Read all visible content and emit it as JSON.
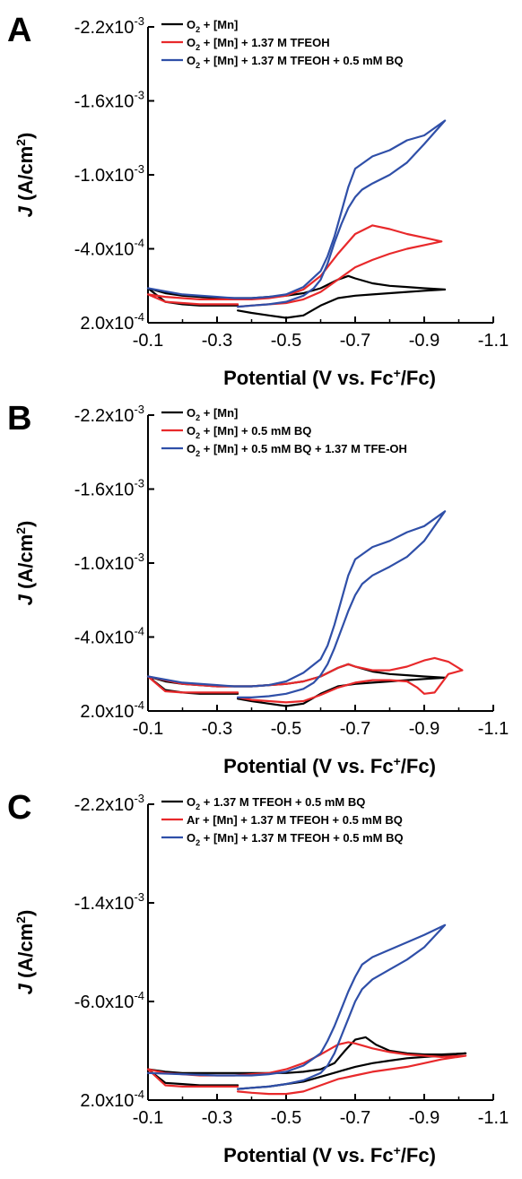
{
  "chart_data": [
    {
      "type": "line",
      "panel": "A",
      "xlabel": "Potential (V vs. Fc⁺/Fc)",
      "ylabel": "J (A/cm²)",
      "xlim": [
        -0.1,
        -1.1
      ],
      "ylim": [
        0.0002,
        -0.0022
      ],
      "x_ticks": [
        "-0.1",
        "-0.3",
        "-0.5",
        "-0.7",
        "-0.9",
        "-1.1"
      ],
      "y_ticks": [
        {
          "v": 0.0002,
          "label": "2.0x10",
          "exp": "-4"
        },
        {
          "v": -0.0004,
          "label": "-4.0x10",
          "exp": "-4"
        },
        {
          "v": -0.001,
          "label": "-1.0x10",
          "exp": "-3"
        },
        {
          "v": -0.0016,
          "label": "-1.6x10",
          "exp": "-3"
        },
        {
          "v": -0.0022,
          "label": "-2.2x10",
          "exp": "-3"
        }
      ],
      "legend": "top-left",
      "series": [
        {
          "name": "O₂ + [Mn]",
          "color": "#000000",
          "x": [
            -0.36,
            -0.4,
            -0.45,
            -0.5,
            -0.55,
            -0.6,
            -0.65,
            -0.7,
            -0.75,
            -0.8,
            -0.85,
            -0.9,
            -0.96,
            -0.9,
            -0.85,
            -0.8,
            -0.75,
            -0.7,
            -0.68,
            -0.65,
            -0.6,
            -0.55,
            -0.5,
            -0.45,
            -0.4,
            -0.35,
            -0.3,
            -0.25,
            -0.2,
            -0.15,
            -0.1,
            -0.15,
            -0.2,
            -0.25,
            -0.3,
            -0.36
          ],
          "y": [
            0.0001,
            0.00012,
            0.00014,
            0.00016,
            0.00014,
            6e-05,
            0.0,
            -2e-05,
            -3e-05,
            -4e-05,
            -5e-05,
            -6e-05,
            -7e-05,
            -8e-05,
            -9e-05,
            -0.0001,
            -0.00012,
            -0.00016,
            -0.00018,
            -0.00015,
            -8e-05,
            -4e-05,
            -2e-05,
            -1e-05,
            0.0,
            0.0,
            0.0,
            -1e-05,
            -2e-05,
            -4e-05,
            -8e-05,
            3e-05,
            5e-05,
            6e-05,
            6e-05,
            6e-05
          ]
        },
        {
          "name": "O₂ + [Mn] + 1.37 M TFEOH",
          "color": "#e8292b",
          "x": [
            -0.36,
            -0.4,
            -0.45,
            -0.5,
            -0.55,
            -0.6,
            -0.65,
            -0.7,
            -0.75,
            -0.8,
            -0.85,
            -0.9,
            -0.95,
            -0.9,
            -0.85,
            -0.8,
            -0.75,
            -0.7,
            -0.65,
            -0.6,
            -0.55,
            -0.5,
            -0.45,
            -0.4,
            -0.35,
            -0.3,
            -0.25,
            -0.2,
            -0.15,
            -0.1,
            -0.15,
            -0.2,
            -0.25,
            -0.3,
            -0.36
          ],
          "y": [
            7e-05,
            6e-05,
            5e-05,
            4e-05,
            1e-05,
            -5e-05,
            -0.00015,
            -0.00025,
            -0.00031,
            -0.00036,
            -0.0004,
            -0.00043,
            -0.00046,
            -0.00049,
            -0.00052,
            -0.00056,
            -0.00059,
            -0.00052,
            -0.00036,
            -0.00018,
            -7e-05,
            -2e-05,
            0.0,
            1e-05,
            1e-05,
            1e-05,
            1e-05,
            0.0,
            -1e-05,
            -3e-05,
            3e-05,
            4e-05,
            5e-05,
            5e-05,
            5e-05
          ]
        },
        {
          "name": "O₂ + [Mn] + 1.37 M TFEOH + 0.5 mM BQ",
          "color": "#2f4fa8",
          "x": [
            -0.36,
            -0.4,
            -0.45,
            -0.5,
            -0.55,
            -0.58,
            -0.6,
            -0.62,
            -0.64,
            -0.66,
            -0.68,
            -0.7,
            -0.72,
            -0.75,
            -0.8,
            -0.85,
            -0.9,
            -0.96,
            -0.9,
            -0.85,
            -0.8,
            -0.75,
            -0.7,
            -0.68,
            -0.66,
            -0.64,
            -0.62,
            -0.6,
            -0.55,
            -0.5,
            -0.45,
            -0.4,
            -0.35,
            -0.3,
            -0.2,
            -0.1
          ],
          "y": [
            7e-05,
            6e-05,
            5e-05,
            3e-05,
            -2e-05,
            -8e-05,
            -0.00015,
            -0.00028,
            -0.00045,
            -0.0006,
            -0.00073,
            -0.00082,
            -0.00088,
            -0.00093,
            -0.001,
            -0.0011,
            -0.00125,
            -0.00144,
            -0.00132,
            -0.00128,
            -0.0012,
            -0.00115,
            -0.00105,
            -0.0009,
            -0.0007,
            -0.0005,
            -0.00034,
            -0.00022,
            -9e-05,
            -3e-05,
            -1e-05,
            0.0,
            0.0,
            -1e-05,
            -3e-05,
            -8e-05
          ]
        }
      ]
    },
    {
      "type": "line",
      "panel": "B",
      "xlabel": "Potential (V vs. Fc⁺/Fc)",
      "ylabel": "J (A/cm²)",
      "xlim": [
        -0.1,
        -1.1
      ],
      "ylim": [
        0.0002,
        -0.0022
      ],
      "x_ticks": [
        "-0.1",
        "-0.3",
        "-0.5",
        "-0.7",
        "-0.9",
        "-1.1"
      ],
      "y_ticks": [
        {
          "v": 0.0002,
          "label": "2.0x10",
          "exp": "-4"
        },
        {
          "v": -0.0004,
          "label": "-4.0x10",
          "exp": "-4"
        },
        {
          "v": -0.001,
          "label": "-1.0x10",
          "exp": "-3"
        },
        {
          "v": -0.0016,
          "label": "-1.6x10",
          "exp": "-3"
        },
        {
          "v": -0.0022,
          "label": "-2.2x10",
          "exp": "-3"
        }
      ],
      "legend": "top-left",
      "series": [
        {
          "name": "O₂ + [Mn]",
          "color": "#000000",
          "x": [
            -0.36,
            -0.4,
            -0.45,
            -0.5,
            -0.55,
            -0.6,
            -0.65,
            -0.7,
            -0.75,
            -0.8,
            -0.85,
            -0.9,
            -0.96,
            -0.9,
            -0.85,
            -0.8,
            -0.75,
            -0.7,
            -0.68,
            -0.65,
            -0.6,
            -0.55,
            -0.5,
            -0.45,
            -0.4,
            -0.35,
            -0.3,
            -0.25,
            -0.2,
            -0.15,
            -0.1,
            -0.15,
            -0.2,
            -0.25,
            -0.3,
            -0.36
          ],
          "y": [
            0.0001,
            0.00012,
            0.00014,
            0.00016,
            0.00014,
            6e-05,
            0.0,
            -2e-05,
            -3e-05,
            -4e-05,
            -5e-05,
            -6e-05,
            -7e-05,
            -8e-05,
            -9e-05,
            -0.0001,
            -0.00012,
            -0.00016,
            -0.00018,
            -0.00015,
            -8e-05,
            -4e-05,
            -2e-05,
            -1e-05,
            0.0,
            0.0,
            0.0,
            -1e-05,
            -2e-05,
            -4e-05,
            -8e-05,
            3e-05,
            5e-05,
            6e-05,
            6e-05,
            6e-05
          ]
        },
        {
          "name": "O₂ + [Mn] + 0.5 mM BQ",
          "color": "#e8292b",
          "x": [
            -0.36,
            -0.4,
            -0.45,
            -0.5,
            -0.55,
            -0.6,
            -0.65,
            -0.7,
            -0.75,
            -0.8,
            -0.85,
            -0.88,
            -0.9,
            -0.93,
            -0.97,
            -1.01,
            -0.97,
            -0.93,
            -0.9,
            -0.85,
            -0.8,
            -0.75,
            -0.7,
            -0.68,
            -0.65,
            -0.6,
            -0.55,
            -0.5,
            -0.45,
            -0.4,
            -0.35,
            -0.3,
            -0.25,
            -0.2,
            -0.1,
            -0.15,
            -0.2,
            -0.25,
            -0.3,
            -0.36
          ],
          "y": [
            9e-05,
            0.00011,
            0.00012,
            0.00013,
            0.00012,
            7e-05,
            1e-05,
            -3e-05,
            -5e-05,
            -5e-05,
            -4e-05,
            1e-05,
            6e-05,
            5e-05,
            -0.0001,
            -0.00013,
            -0.0002,
            -0.00023,
            -0.00021,
            -0.00016,
            -0.00013,
            -0.00013,
            -0.00016,
            -0.00018,
            -0.00015,
            -8e-05,
            -4e-05,
            -2e-05,
            -1e-05,
            0.0,
            0.0,
            0.0,
            -1e-05,
            -2e-05,
            -8e-05,
            4e-05,
            5e-05,
            5e-05,
            5e-05,
            5e-05
          ]
        },
        {
          "name": "O₂ + [Mn] + 0.5 mM BQ + 1.37 M TFE-OH",
          "color": "#2f4fa8",
          "x": [
            -0.36,
            -0.4,
            -0.45,
            -0.5,
            -0.55,
            -0.58,
            -0.6,
            -0.62,
            -0.64,
            -0.66,
            -0.68,
            -0.7,
            -0.72,
            -0.75,
            -0.8,
            -0.85,
            -0.9,
            -0.96,
            -0.9,
            -0.85,
            -0.8,
            -0.75,
            -0.7,
            -0.68,
            -0.66,
            -0.64,
            -0.62,
            -0.6,
            -0.55,
            -0.5,
            -0.45,
            -0.4,
            -0.35,
            -0.3,
            -0.2,
            -0.1
          ],
          "y": [
            9e-05,
            9e-05,
            8e-05,
            6e-05,
            2e-05,
            -3e-05,
            -9e-05,
            -0.00018,
            -0.00031,
            -0.00046,
            -0.00061,
            -0.00074,
            -0.00083,
            -0.0009,
            -0.00097,
            -0.00105,
            -0.00118,
            -0.00142,
            -0.0013,
            -0.00125,
            -0.00118,
            -0.00113,
            -0.00103,
            -0.0009,
            -0.0007,
            -0.0005,
            -0.00033,
            -0.00022,
            -0.00011,
            -4e-05,
            -1e-05,
            0.0,
            0.0,
            -1e-05,
            -3e-05,
            -8e-05
          ]
        }
      ]
    },
    {
      "type": "line",
      "panel": "C",
      "xlabel": "Potential (V vs. Fc⁺/Fc)",
      "ylabel": "J (A/cm²)",
      "xlim": [
        -0.1,
        -1.1
      ],
      "ylim": [
        0.0002,
        -0.0022
      ],
      "x_ticks": [
        "-0.1",
        "-0.3",
        "-0.5",
        "-0.7",
        "-0.9",
        "-1.1"
      ],
      "y_ticks": [
        {
          "v": 0.0002,
          "label": "2.0x10",
          "exp": "-4"
        },
        {
          "v": -0.0006,
          "label": "-6.0x10",
          "exp": "-4"
        },
        {
          "v": -0.0014,
          "label": "-1.4x10",
          "exp": "-3"
        },
        {
          "v": -0.0022,
          "label": "-2.2x10",
          "exp": "-3"
        }
      ],
      "legend": "top-left",
      "series": [
        {
          "name": "O₂ + 1.37 M TFEOH + 0.5 mM BQ",
          "color": "#000000",
          "x": [
            -0.36,
            -0.4,
            -0.45,
            -0.5,
            -0.55,
            -0.6,
            -0.65,
            -0.7,
            -0.75,
            -0.8,
            -0.85,
            -0.9,
            -0.95,
            -1.02,
            -0.95,
            -0.9,
            -0.85,
            -0.8,
            -0.76,
            -0.73,
            -0.7,
            -0.67,
            -0.64,
            -0.6,
            -0.55,
            -0.5,
            -0.45,
            -0.4,
            -0.35,
            -0.3,
            -0.25,
            -0.2,
            -0.15,
            -0.1,
            -0.15,
            -0.2,
            -0.25,
            -0.3,
            -0.36
          ],
          "y": [
            0.00011,
            0.0001,
            9e-05,
            7e-05,
            5e-05,
            1e-05,
            -3e-05,
            -7e-05,
            -0.0001,
            -0.00012,
            -0.00014,
            -0.00015,
            -0.00016,
            -0.00018,
            -0.00017,
            -0.00017,
            -0.00018,
            -0.0002,
            -0.00025,
            -0.00031,
            -0.00029,
            -0.0002,
            -0.0001,
            -5e-05,
            -3e-05,
            -2e-05,
            -2e-05,
            -2e-05,
            -2e-05,
            -2e-05,
            -2e-05,
            -2e-05,
            -3e-05,
            -5e-05,
            6e-05,
            7e-05,
            8e-05,
            8e-05,
            8e-05
          ]
        },
        {
          "name": "Ar + [Mn] + 1.37 M TFEOH + 0.5 mM BQ",
          "color": "#e8292b",
          "x": [
            -0.36,
            -0.4,
            -0.45,
            -0.5,
            -0.55,
            -0.6,
            -0.65,
            -0.7,
            -0.75,
            -0.8,
            -0.85,
            -0.9,
            -0.95,
            -1.02,
            -0.95,
            -0.9,
            -0.85,
            -0.8,
            -0.75,
            -0.7,
            -0.68,
            -0.65,
            -0.6,
            -0.55,
            -0.5,
            -0.45,
            -0.4,
            -0.35,
            -0.3,
            -0.25,
            -0.2,
            -0.15,
            -0.1,
            -0.15,
            -0.2,
            -0.25,
            -0.3,
            -0.36
          ],
          "y": [
            0.00013,
            0.00014,
            0.00015,
            0.00015,
            0.00013,
            8e-05,
            3e-05,
            0.0,
            -3e-05,
            -5e-05,
            -7e-05,
            -0.0001,
            -0.00013,
            -0.00016,
            -0.00015,
            -0.00016,
            -0.00017,
            -0.00019,
            -0.00022,
            -0.00026,
            -0.00027,
            -0.00025,
            -0.00017,
            -0.0001,
            -5e-05,
            -2e-05,
            -1e-05,
            0.0,
            0.0,
            0.0,
            -1e-05,
            -2e-05,
            -5e-05,
            8e-05,
            9e-05,
            9e-05,
            9e-05,
            9e-05
          ]
        },
        {
          "name": "O₂ + [Mn] + 1.37 M TFEOH + 0.5 mM BQ",
          "color": "#2f4fa8",
          "x": [
            -0.36,
            -0.4,
            -0.45,
            -0.5,
            -0.55,
            -0.6,
            -0.62,
            -0.64,
            -0.66,
            -0.68,
            -0.7,
            -0.72,
            -0.75,
            -0.8,
            -0.85,
            -0.9,
            -0.96,
            -0.9,
            -0.85,
            -0.8,
            -0.75,
            -0.72,
            -0.7,
            -0.68,
            -0.66,
            -0.64,
            -0.62,
            -0.6,
            -0.55,
            -0.5,
            -0.45,
            -0.4,
            -0.35,
            -0.3,
            -0.2,
            -0.1
          ],
          "y": [
            0.00011,
            0.0001,
            9e-05,
            7e-05,
            4e-05,
            -2e-05,
            -8e-05,
            -0.00018,
            -0.00032,
            -0.00046,
            -0.0006,
            -0.0007,
            -0.00078,
            -0.00086,
            -0.00094,
            -0.00104,
            -0.00122,
            -0.00114,
            -0.00108,
            -0.00102,
            -0.00096,
            -0.0009,
            -0.0008,
            -0.00068,
            -0.00054,
            -0.0004,
            -0.00028,
            -0.00018,
            -8e-05,
            -3e-05,
            -1e-05,
            0.0,
            0.0,
            0.0,
            -1e-05,
            -2e-05
          ]
        }
      ]
    }
  ]
}
